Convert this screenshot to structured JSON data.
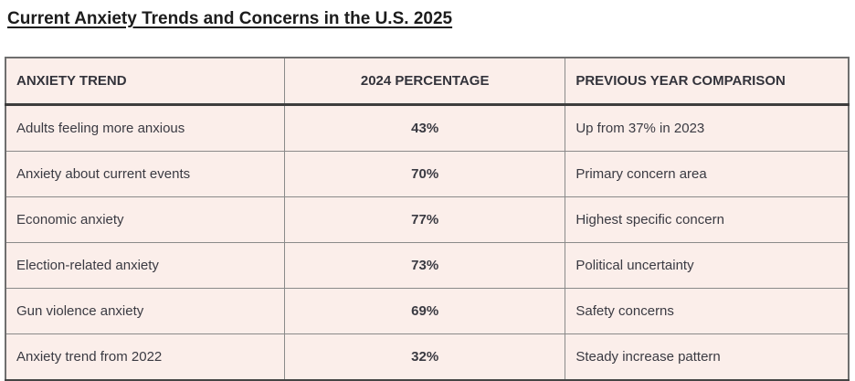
{
  "page": {
    "title": "Current Anxiety Trends and Concerns in the U.S. 2025"
  },
  "table": {
    "headers": {
      "trend": "ANXIETY TREND",
      "percentage": "2024 PERCENTAGE",
      "comparison": "PREVIOUS YEAR COMPARISON"
    },
    "rows": [
      {
        "trend": "Adults feeling more anxious",
        "percentage": "43%",
        "comparison": "Up from 37% in 2023"
      },
      {
        "trend": "Anxiety about current events",
        "percentage": "70%",
        "comparison": "Primary concern area"
      },
      {
        "trend": "Economic anxiety",
        "percentage": "77%",
        "comparison": "Highest specific concern"
      },
      {
        "trend": "Election-related anxiety",
        "percentage": "73%",
        "comparison": "Political uncertainty"
      },
      {
        "trend": "Gun violence anxiety",
        "percentage": "69%",
        "comparison": "Safety concerns"
      },
      {
        "trend": "Anxiety trend from 2022",
        "percentage": "32%",
        "comparison": "Steady increase pattern"
      }
    ]
  },
  "colors": {
    "cell_background": "#fbeeea",
    "inner_border": "#8a8a8a",
    "outer_border": "#6f6f6f",
    "header_divider": "#3d3d3d",
    "text": "#3a3a42",
    "title_text": "#1c1c1c"
  }
}
